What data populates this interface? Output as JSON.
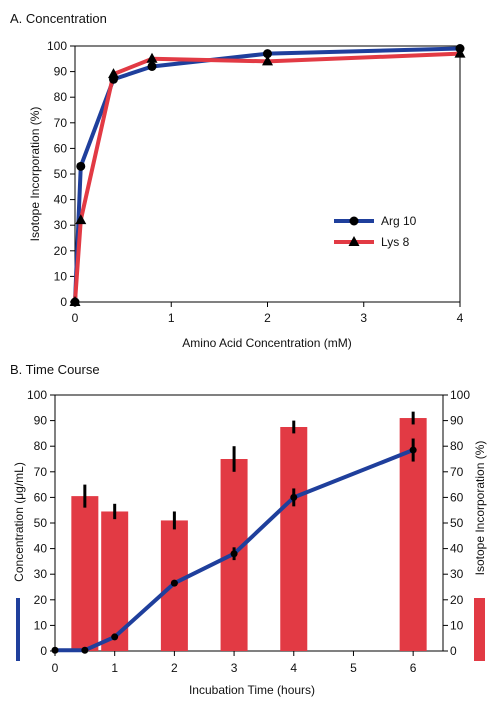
{
  "colors": {
    "blue": "#1f3f9c",
    "red": "#e23a44",
    "black": "#000000"
  },
  "chart_data": [
    {
      "type": "line",
      "title": "A. Concentration",
      "xlabel": "Amino Acid Concentration (mM)",
      "ylabel": "Isotope Incorporation (%)",
      "xlim": [
        0,
        4
      ],
      "ylim": [
        0,
        100
      ],
      "x_ticks": [
        "0",
        "1",
        "2",
        "3",
        "4"
      ],
      "y_ticks": [
        "0",
        "10",
        "20",
        "30",
        "40",
        "50",
        "60",
        "70",
        "80",
        "90",
        "100"
      ],
      "grid": false,
      "legend_position": "right-center",
      "series": [
        {
          "name": "Arg 10",
          "marker": "circle",
          "color": "#1f3f9c",
          "x": [
            0,
            0.06,
            0.4,
            0.8,
            2,
            4
          ],
          "y": [
            0,
            53,
            87,
            92,
            97,
            99
          ]
        },
        {
          "name": "Lys 8",
          "marker": "triangle",
          "color": "#e23a44",
          "x": [
            0,
            0.06,
            0.4,
            0.8,
            2,
            4
          ],
          "y": [
            0,
            32,
            89,
            95,
            94,
            97
          ]
        }
      ]
    },
    {
      "type": "bar+line",
      "title": "B. Time Course",
      "xlabel": "Incubation Time (hours)",
      "ylabel_left": "Concentration (μg/mL)",
      "ylabel_right": "Isotope Incorporation (%)",
      "xlim": [
        0,
        6.5
      ],
      "ylim": [
        0,
        100
      ],
      "x_ticks": [
        "0",
        "1",
        "2",
        "3",
        "4",
        "5",
        "6"
      ],
      "y_ticks": [
        "0",
        "10",
        "20",
        "30",
        "40",
        "50",
        "60",
        "70",
        "80",
        "90",
        "100"
      ],
      "grid": false,
      "bars": {
        "axis": "right",
        "color": "#e23a44",
        "x": [
          0.5,
          1,
          2,
          3,
          4,
          6
        ],
        "values": [
          60.5,
          54.5,
          51,
          75,
          87.5,
          91
        ],
        "errors": [
          4.5,
          3,
          3.5,
          5,
          2.5,
          2.5
        ]
      },
      "line": {
        "axis": "left",
        "color": "#1f3f9c",
        "x": [
          0,
          0.5,
          1,
          2,
          3,
          4,
          6
        ],
        "values": [
          0.3,
          0.3,
          5.5,
          26.5,
          38,
          60,
          78.5
        ],
        "errors": [
          0,
          0,
          0,
          0,
          2.5,
          3.5,
          4.5
        ]
      }
    }
  ]
}
